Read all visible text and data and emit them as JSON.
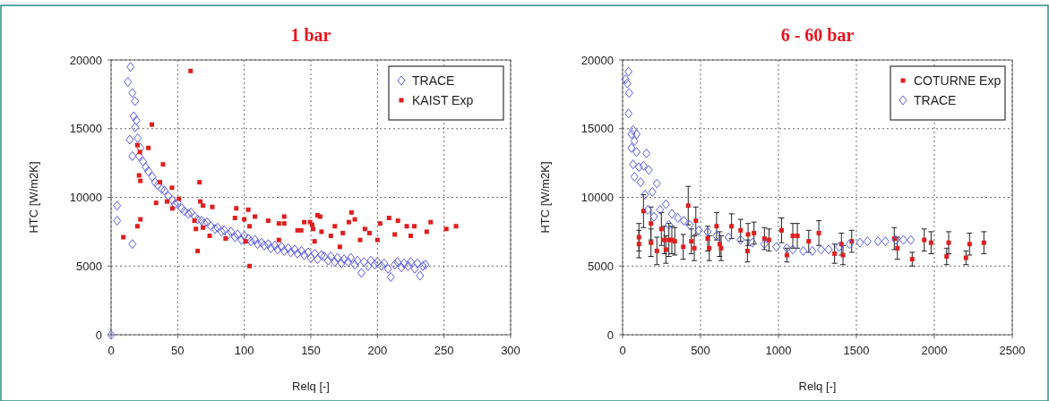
{
  "chart_data": [
    {
      "type": "scatter",
      "title": "1 bar",
      "xlabel": "Relq [-]",
      "ylabel": "HTC [W/m2K]",
      "xlim": [
        0,
        300
      ],
      "xticks": [
        0,
        50,
        100,
        150,
        200,
        250,
        300
      ],
      "ylim": [
        0,
        20000
      ],
      "yticks": [
        0,
        5000,
        10000,
        15000,
        20000
      ],
      "grid": true,
      "legend": "top right",
      "series": [
        {
          "name": "TRACE",
          "color": "#5a5ae6",
          "marker": "diamond",
          "x": [
            0,
            14.6,
            12.6,
            16,
            18,
            17,
            19,
            18,
            14,
            20,
            16,
            21,
            4.5,
            4.5,
            16,
            22,
            24,
            26,
            28,
            31,
            33,
            35,
            38,
            40,
            43,
            46,
            48,
            50,
            53,
            55,
            58,
            60,
            63,
            65,
            68,
            70,
            72,
            75,
            78,
            80,
            83,
            85,
            88,
            90,
            93,
            95,
            98,
            100,
            103,
            105,
            108,
            110,
            113,
            115,
            118,
            120,
            123,
            125,
            128,
            130,
            133,
            135,
            138,
            140,
            143,
            145,
            148,
            150,
            153,
            155,
            158,
            160,
            163,
            165,
            168,
            170,
            173,
            175,
            178,
            180,
            183,
            185,
            188,
            190,
            193,
            195,
            198,
            200,
            203,
            205,
            208,
            210,
            213,
            215,
            218,
            220,
            223,
            225,
            228,
            230,
            232,
            234,
            236
          ],
          "values": [
            0,
            19500,
            18400,
            17600,
            17000,
            15900,
            15600,
            15100,
            14200,
            14300,
            13000,
            13000,
            9400,
            8300,
            6600,
            13600,
            12600,
            12200,
            11900,
            11500,
            11100,
            10900,
            10600,
            10500,
            10100,
            9800,
            9500,
            9600,
            9200,
            9000,
            8800,
            8900,
            8600,
            8400,
            8300,
            8100,
            8200,
            7900,
            7700,
            7800,
            7500,
            7600,
            7300,
            7500,
            7100,
            7300,
            6900,
            7200,
            7000,
            6800,
            6900,
            6600,
            6700,
            6500,
            6600,
            6300,
            6500,
            6200,
            6400,
            6100,
            6300,
            6000,
            6200,
            5900,
            6100,
            5800,
            6000,
            5600,
            5900,
            5500,
            5800,
            5700,
            5400,
            5700,
            5300,
            5600,
            5200,
            5500,
            5300,
            5600,
            5100,
            5400,
            4500,
            5300,
            5000,
            5400,
            5100,
            5300,
            5000,
            5200,
            4800,
            4200,
            5100,
            5300,
            4900,
            5200,
            5000,
            5300,
            4800,
            5200,
            4300,
            5000,
            5100
          ]
        },
        {
          "name": "KAIST Exp",
          "color": "#e01e1e",
          "marker": "square",
          "x": [
            59.7,
            30.6,
            19.8,
            21.6,
            28,
            39,
            21,
            22,
            36.7,
            66.4,
            33.8,
            45.7,
            42,
            46,
            51,
            67,
            69,
            76,
            62.6,
            63.7,
            69,
            74,
            65,
            22,
            19.8,
            9.2,
            94,
            103,
            93,
            100,
            108,
            104,
            86,
            101,
            104,
            118,
            130,
            130,
            126,
            126,
            140,
            145,
            151,
            157,
            142.7,
            149.4,
            155,
            151.7,
            158,
            165,
            168,
            174,
            178.5,
            180.5,
            183,
            187,
            190.6,
            194,
            200,
            202,
            208.7,
            213,
            215.4,
            222,
            227.7,
            225,
            237,
            240,
            251.7,
            259,
            171.8,
            152.8
          ],
          "values": [
            19200,
            15300,
            13800,
            13300,
            13600,
            12400,
            11600,
            11200,
            11100,
            11100,
            9600,
            10700,
            9700,
            9200,
            9900,
            9700,
            9400,
            9300,
            8300,
            7700,
            7800,
            7200,
            6100,
            8400,
            7900,
            7100,
            9200,
            9100,
            8500,
            8400,
            8600,
            7900,
            7000,
            6800,
            5000,
            8300,
            8600,
            8100,
            8100,
            6900,
            7600,
            8200,
            8000,
            8600,
            7600,
            8200,
            8700,
            7700,
            7500,
            7200,
            7900,
            7400,
            8200,
            8900,
            8400,
            6900,
            7700,
            7400,
            6900,
            8100,
            8500,
            7300,
            8300,
            7900,
            7900,
            7200,
            7500,
            8200,
            7700,
            7900,
            6400,
            6800
          ]
        }
      ]
    },
    {
      "type": "scatter",
      "title": "6 - 60 bar",
      "xlabel": "Relq [-]",
      "ylabel": "HTC [W/m2K]",
      "xlim": [
        0,
        2500
      ],
      "xticks": [
        0,
        500,
        1000,
        1500,
        2000,
        2500
      ],
      "ylim": [
        0,
        20000
      ],
      "yticks": [
        0,
        5000,
        10000,
        15000,
        20000
      ],
      "grid": true,
      "legend": "top right",
      "series": [
        {
          "name": "COTURNE Exp",
          "color": "#e01e1e",
          "marker": "square",
          "x": [
            134,
            105,
            105,
            182,
            182,
            220,
            249,
            268,
            297,
            316,
            278,
            335,
            389,
            421,
            441,
            460,
            470,
            546,
            556,
            603,
            623,
            632,
            699,
            757,
            805,
            843,
            801,
            910,
            939,
            1020,
            1054,
            1092,
            1121,
            1194,
            1259,
            1360,
            1404,
            1414,
            1470,
            1743,
            1763,
            1858,
            1935,
            1979,
            2079,
            2092,
            2203,
            2226,
            2318
          ],
          "values": [
            9000,
            7100,
            6600,
            8100,
            6700,
            6100,
            7700,
            6900,
            6900,
            6900,
            6200,
            6800,
            6400,
            9400,
            6800,
            6300,
            8300,
            7000,
            6300,
            7900,
            6600,
            6300,
            7900,
            7600,
            7300,
            7400,
            6100,
            7000,
            6900,
            7600,
            5800,
            7200,
            7200,
            6800,
            7400,
            5900,
            6600,
            5800,
            6800,
            7000,
            6300,
            5500,
            6900,
            6700,
            5700,
            6700,
            5600,
            6600,
            6700
          ],
          "errors": [
            1200,
            1000,
            1000,
            1200,
            1000,
            1000,
            1200,
            1000,
            1200,
            1000,
            1000,
            1000,
            900,
            1400,
            900,
            900,
            1000,
            900,
            900,
            1000,
            900,
            900,
            900,
            800,
            800,
            800,
            800,
            800,
            800,
            900,
            500,
            900,
            900,
            800,
            900,
            700,
            800,
            700,
            800,
            800,
            800,
            500,
            800,
            800,
            600,
            800,
            500,
            800,
            800
          ]
        },
        {
          "name": "TRACE",
          "color": "#5a5ae6",
          "marker": "diamond",
          "x": [
            38,
            19,
            30,
            42,
            38,
            67,
            90,
            57,
            76,
            57,
            90,
            153,
            67,
            105,
            134,
            168,
            76,
            115,
            220,
            191,
            144,
            278,
            240,
            163,
            201,
            316,
            355,
            393,
            297,
            431,
            489,
            546,
            603,
            680,
            757,
            833,
            910,
            987,
            1054,
            1092,
            1159,
            1217,
            1274,
            1322,
            1389,
            1456,
            1523,
            1571,
            1638,
            1686,
            1753,
            1801,
            1849
          ],
          "values": [
            19150,
            18600,
            18300,
            17600,
            16100,
            14900,
            14600,
            14600,
            14100,
            13600,
            13300,
            13200,
            12400,
            12200,
            12300,
            12000,
            11500,
            11100,
            11000,
            10400,
            10200,
            9500,
            9100,
            9100,
            8600,
            8800,
            8500,
            8300,
            8000,
            8000,
            7600,
            7500,
            7200,
            7100,
            6900,
            6700,
            6600,
            6400,
            6300,
            6200,
            6100,
            6100,
            6200,
            6200,
            6400,
            6600,
            6700,
            6800,
            6800,
            6800,
            6900,
            6900,
            6900
          ]
        }
      ]
    }
  ]
}
